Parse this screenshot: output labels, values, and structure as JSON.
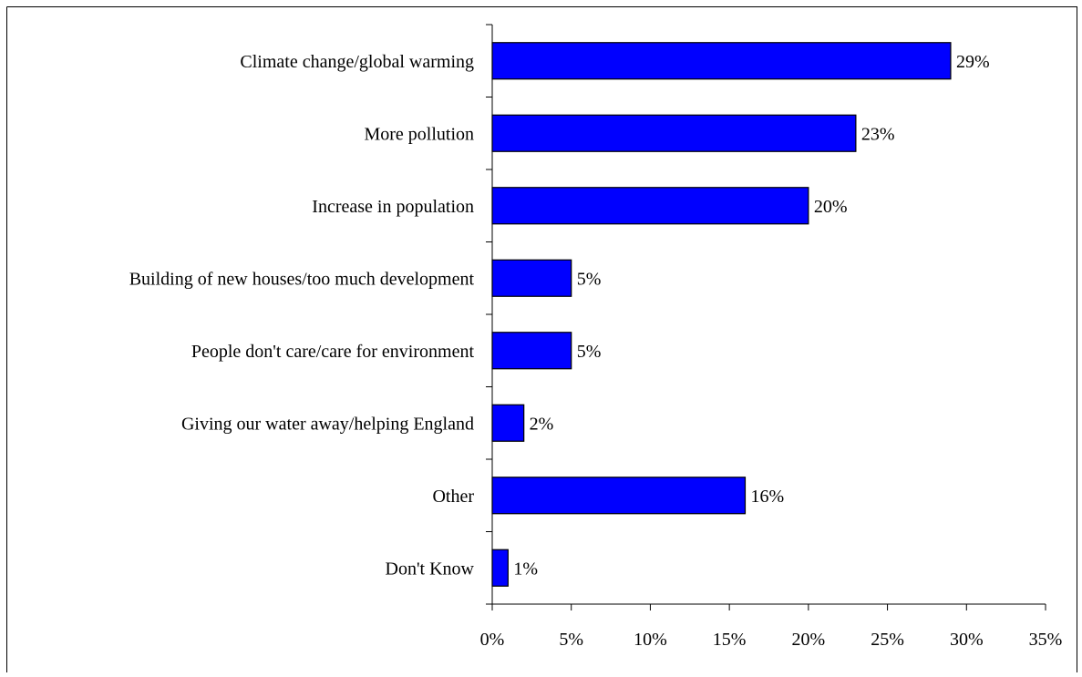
{
  "chart_data": {
    "type": "bar",
    "orientation": "horizontal",
    "categories": [
      "Climate change/global warming",
      "More pollution",
      "Increase in population",
      "Building of new houses/too much development",
      "People don't care/care for environment",
      "Giving our water away/helping England",
      "Other",
      "Don't Know"
    ],
    "values": [
      29,
      23,
      20,
      5,
      5,
      2,
      16,
      1
    ],
    "value_labels": [
      "29%",
      "23%",
      "20%",
      "5%",
      "5%",
      "2%",
      "16%",
      "1%"
    ],
    "xlim": [
      0,
      35
    ],
    "xticks": [
      0,
      5,
      10,
      15,
      20,
      25,
      30,
      35
    ],
    "xtick_labels": [
      "0%",
      "5%",
      "10%",
      "15%",
      "20%",
      "25%",
      "30%",
      "35%"
    ],
    "title": "",
    "xlabel": "",
    "ylabel": "",
    "grid": false,
    "legend": "none",
    "colors": {
      "bar_fill": "#0000FF",
      "bar_stroke": "#000000",
      "axis": "#000000",
      "frame": "#000000",
      "text": "#000000"
    }
  }
}
